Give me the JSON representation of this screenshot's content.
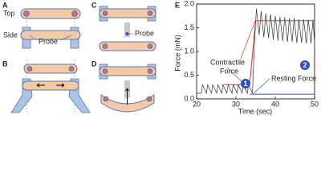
{
  "panels": {
    "a": "A",
    "b": "B",
    "c": "C",
    "d": "D",
    "e": "E"
  },
  "diagram": {
    "top": "Top",
    "side": "Side",
    "probe_a": "Probe",
    "probe_c": "Probe"
  },
  "chart_data": {
    "type": "line",
    "xlabel": "Time (sec)",
    "ylabel": "Force (mN)",
    "xlim": [
      20,
      50
    ],
    "xticks": [
      20,
      30,
      40,
      50
    ],
    "ylim": [
      0,
      2.0
    ],
    "yticks": [
      {
        "value": 0,
        "label": "0.0"
      },
      {
        "value": 0.5,
        "label": "0.5"
      },
      {
        "value": 1.0,
        "label": "1.0"
      },
      {
        "value": 1.5,
        "label": "1.5"
      },
      {
        "value": 2.0,
        "label": "2.0"
      }
    ],
    "series": [
      {
        "color": "#333333",
        "x": [
          20,
          21.2,
          21.5,
          22.5,
          22.8,
          23.8,
          24.1,
          25.1,
          25.4,
          26.4,
          26.7,
          27.7,
          28.0,
          29.0,
          29.3,
          30.3,
          30.6,
          31.6,
          31.9,
          32.9,
          33.2,
          34.2,
          34.6,
          35.2,
          35.9,
          36.4,
          37.1,
          37.6,
          38.3,
          38.8,
          39.5,
          40.0,
          40.7,
          41.2,
          41.9,
          42.4,
          43.1,
          43.6,
          44.3,
          44.8,
          45.5,
          46.0,
          46.7,
          47.2,
          47.9,
          48.4,
          49.1,
          49.6,
          50
        ],
        "values": [
          0.12,
          0.12,
          0.3,
          0.12,
          0.3,
          0.12,
          0.3,
          0.12,
          0.3,
          0.12,
          0.3,
          0.12,
          0.3,
          0.12,
          0.3,
          0.12,
          0.3,
          0.12,
          0.3,
          0.12,
          0.3,
          0.12,
          1.0,
          1.9,
          1.35,
          1.85,
          1.3,
          1.8,
          1.28,
          1.78,
          1.25,
          1.75,
          1.23,
          1.73,
          1.22,
          1.72,
          1.2,
          1.7,
          1.2,
          1.7,
          1.18,
          1.68,
          1.18,
          1.68,
          1.17,
          1.67,
          1.17,
          1.67,
          1.17
        ]
      }
    ],
    "annotations": [
      {
        "lines": [
          "Contractile",
          "Force"
        ],
        "color": "#e0302a",
        "x": [
          27,
          33.5,
          35,
          50
        ],
        "values": [
          0.3,
          0.3,
          1.65,
          1.65
        ]
      },
      {
        "lines": [
          "Resting Force"
        ],
        "color": "#2a50d0",
        "x": [
          33.5,
          50
        ],
        "values": [
          0.1,
          0.1
        ]
      }
    ],
    "markers": [
      "1",
      "2"
    ]
  }
}
